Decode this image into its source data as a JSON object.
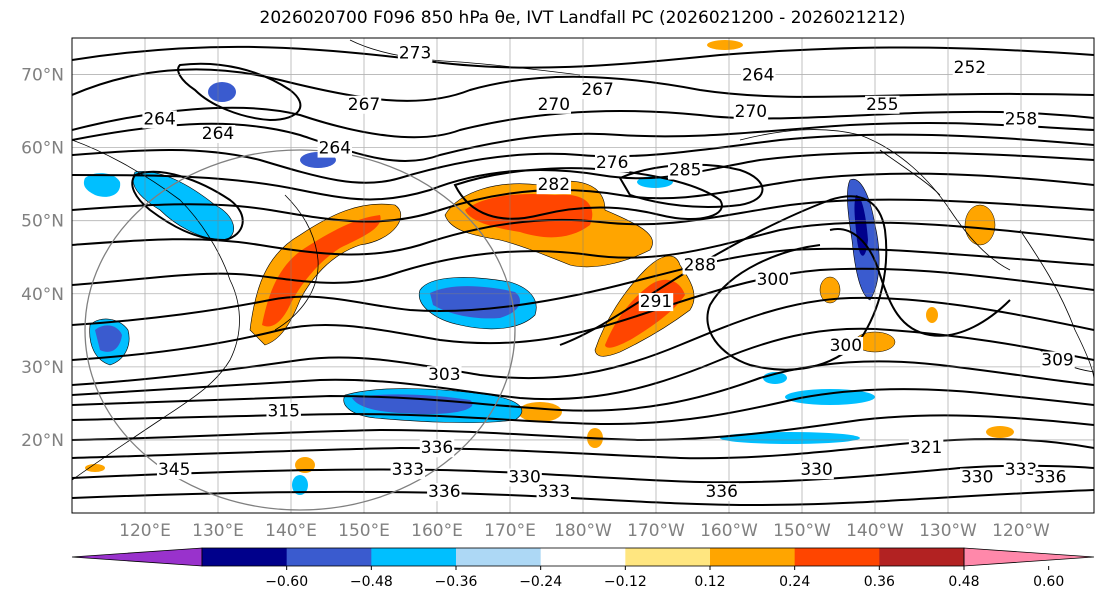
{
  "title": "2026020700 F096 850 hPa θe, IVT Landfall PC (2026021200 - 2026021212)",
  "chart_data": {
    "type": "contour-map",
    "title": "2026020700 F096 850 hPa θe, IVT Landfall PC (2026021200 - 2026021212)",
    "projection": "PlateCarree",
    "lon_range": [
      110,
      250
    ],
    "lat_range": [
      10,
      75
    ],
    "lon_ticks": [
      "120°E",
      "130°E",
      "140°E",
      "150°E",
      "160°E",
      "170°E",
      "180°W",
      "170°W",
      "160°W",
      "150°W",
      "140°W",
      "130°W",
      "120°W"
    ],
    "lat_ticks": [
      "20°N",
      "30°N",
      "40°N",
      "50°N",
      "60°N",
      "70°N"
    ],
    "colorbar": {
      "levels": [
        "−0.60",
        "−0.48",
        "−0.36",
        "−0.24",
        "−0.12",
        "0.12",
        "0.24",
        "0.36",
        "0.48",
        "0.60"
      ],
      "colors": [
        "#9932cc",
        "#00008b",
        "#3a5bcf",
        "#00bfff",
        "#add8f5",
        "#ffffff",
        "#ffe680",
        "#ffa500",
        "#ff4500",
        "#b22222",
        "#ff88aa"
      ]
    },
    "contour_labels": [
      {
        "text": "273",
        "lon": 157,
        "lat": 73
      },
      {
        "text": "264",
        "lon": 204,
        "lat": 70
      },
      {
        "text": "252",
        "lon": 233,
        "lat": 71
      },
      {
        "text": "267",
        "lon": 182,
        "lat": 68
      },
      {
        "text": "270",
        "lon": 176,
        "lat": 66
      },
      {
        "text": "267",
        "lon": 150,
        "lat": 66
      },
      {
        "text": "264",
        "lon": 122,
        "lat": 64
      },
      {
        "text": "264",
        "lon": 130,
        "lat": 62
      },
      {
        "text": "264",
        "lon": 146,
        "lat": 60
      },
      {
        "text": "255",
        "lon": 221,
        "lat": 66
      },
      {
        "text": "258",
        "lon": 240,
        "lat": 64
      },
      {
        "text": "270",
        "lon": 203,
        "lat": 65
      },
      {
        "text": "282",
        "lon": 176,
        "lat": 55
      },
      {
        "text": "276",
        "lon": 184,
        "lat": 58
      },
      {
        "text": "285",
        "lon": 194,
        "lat": 57
      },
      {
        "text": "288",
        "lon": 196,
        "lat": 44
      },
      {
        "text": "291",
        "lon": 190,
        "lat": 39
      },
      {
        "text": "300",
        "lon": 206,
        "lat": 42
      },
      {
        "text": "300",
        "lon": 216,
        "lat": 33
      },
      {
        "text": "303",
        "lon": 161,
        "lat": 29
      },
      {
        "text": "315",
        "lon": 139,
        "lat": 24
      },
      {
        "text": "321",
        "lon": 227,
        "lat": 19
      },
      {
        "text": "330",
        "lon": 212,
        "lat": 16
      },
      {
        "text": "336",
        "lon": 160,
        "lat": 19
      },
      {
        "text": "333",
        "lon": 156,
        "lat": 16
      },
      {
        "text": "336",
        "lon": 161,
        "lat": 13
      },
      {
        "text": "330",
        "lon": 172,
        "lat": 15
      },
      {
        "text": "333",
        "lon": 176,
        "lat": 13
      },
      {
        "text": "336",
        "lon": 199,
        "lat": 13
      },
      {
        "text": "330",
        "lon": 234,
        "lat": 15
      },
      {
        "text": "333",
        "lon": 240,
        "lat": 16
      },
      {
        "text": "336",
        "lon": 244,
        "lat": 15
      },
      {
        "text": "345",
        "lon": 124,
        "lat": 16
      },
      {
        "text": "309",
        "lon": 245,
        "lat": 31
      }
    ]
  }
}
